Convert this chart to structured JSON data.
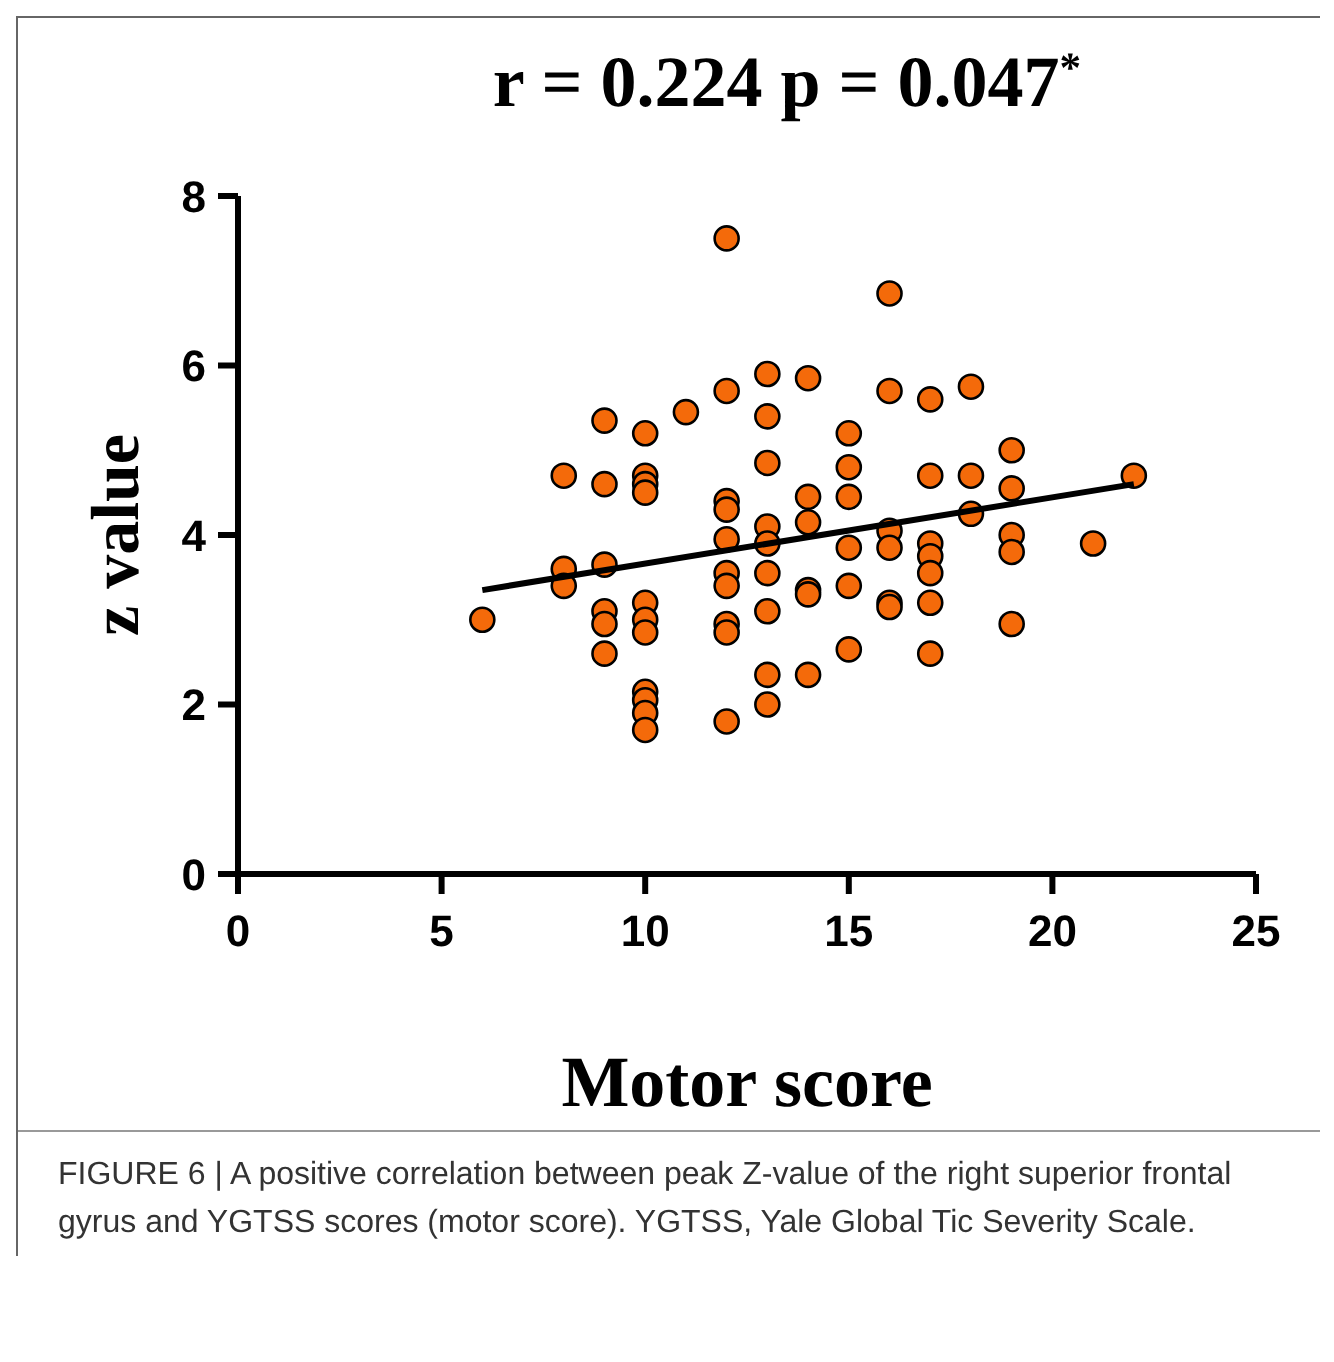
{
  "chart_data": {
    "type": "scatter",
    "title": "r = 0.224  p = 0.047$^{*}$",
    "xlabel": "Motor score",
    "ylabel": "z value",
    "xlim": [
      0,
      25
    ],
    "xticks": [
      0,
      5,
      10,
      15,
      20,
      25
    ],
    "ylim": [
      0,
      8
    ],
    "yticks": [
      0,
      2,
      4,
      6,
      8
    ],
    "grid": false,
    "marker": "circle",
    "series": [
      {
        "color": "#f46a0a",
        "x": [
          6,
          8,
          8,
          8,
          9,
          9,
          9,
          9,
          9,
          9,
          10,
          10,
          10,
          10,
          10,
          10,
          10,
          10,
          10,
          10,
          10,
          11,
          12,
          12,
          12,
          12,
          12,
          12,
          12,
          12,
          12,
          12,
          13,
          13,
          13,
          13,
          13,
          13,
          13,
          13,
          13,
          14,
          14,
          14,
          14,
          14,
          14,
          15,
          15,
          15,
          15,
          15,
          15,
          16,
          16,
          16,
          16,
          16,
          16,
          17,
          17,
          17,
          17,
          17,
          17,
          17,
          18,
          18,
          18,
          19,
          19,
          19,
          19,
          19,
          21,
          22
        ],
        "values": [
          3.0,
          4.7,
          3.6,
          3.4,
          5.35,
          4.6,
          3.65,
          3.1,
          2.95,
          2.6,
          5.2,
          4.7,
          4.6,
          4.5,
          3.2,
          3.0,
          2.85,
          2.15,
          2.05,
          1.9,
          1.7,
          5.45,
          7.5,
          5.7,
          4.4,
          4.3,
          3.95,
          3.55,
          3.4,
          2.95,
          2.85,
          1.8,
          5.9,
          5.4,
          4.85,
          4.1,
          3.9,
          3.55,
          3.1,
          2.35,
          2.0,
          5.85,
          4.45,
          4.15,
          3.35,
          3.3,
          2.35,
          5.2,
          4.8,
          4.45,
          3.85,
          3.4,
          2.65,
          6.85,
          5.7,
          4.05,
          3.85,
          3.2,
          3.15,
          5.6,
          4.7,
          3.9,
          3.75,
          3.55,
          3.2,
          2.6,
          5.75,
          4.7,
          4.25,
          5.0,
          4.55,
          4.0,
          3.8,
          2.95,
          3.9,
          4.7
        ]
      },
      {
        "type": "line",
        "color": "#000000",
        "marker": "none",
        "x": [
          6,
          22
        ],
        "values": [
          3.35,
          4.6
        ]
      }
    ],
    "annotations": [
      "FIGURE 6 | A positive correlation between peak Z-value of the right superior frontal gyrus and YGTSS scores (motor score). YGTSS, Yale Global Tic Severity Scale."
    ]
  }
}
